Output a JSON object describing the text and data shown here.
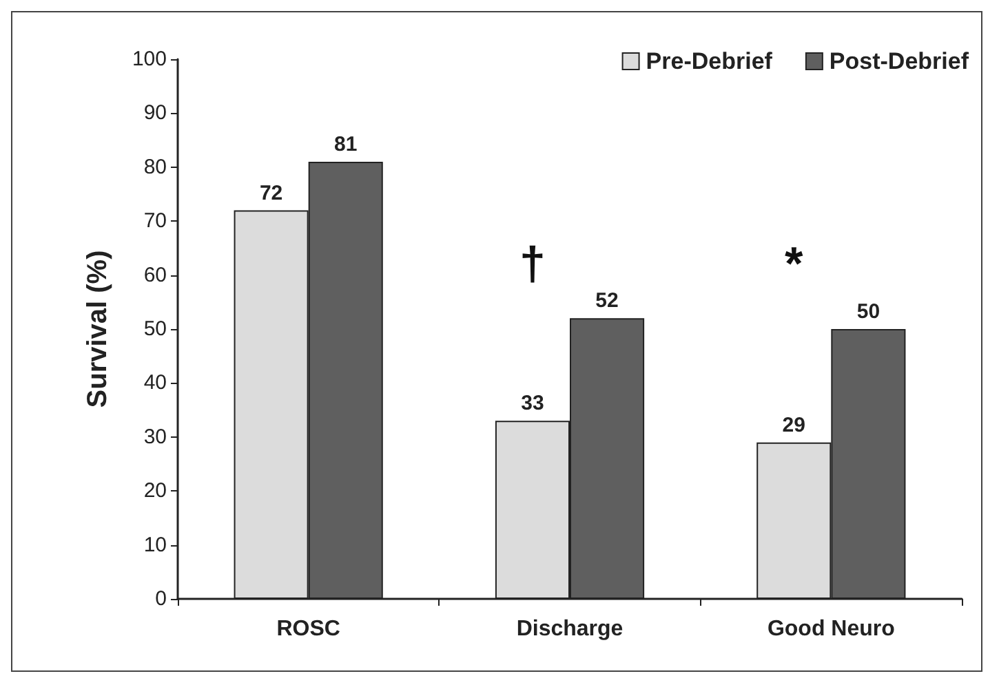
{
  "chart_data": {
    "type": "bar",
    "ylabel": "Survival (%)",
    "categories": [
      "ROSC",
      "Discharge",
      "Good Neuro"
    ],
    "series": [
      {
        "name": "Pre-Debrief",
        "color": "#dcdcdc",
        "values": [
          72,
          33,
          29
        ]
      },
      {
        "name": "Post-Debrief",
        "color": "#5f5f5f",
        "values": [
          81,
          52,
          50
        ]
      }
    ],
    "ylim": [
      0,
      100
    ],
    "yticks": [
      0,
      10,
      20,
      30,
      40,
      50,
      60,
      70,
      80,
      90,
      100
    ],
    "grid": false,
    "legend": "top right",
    "data_labels": true,
    "annotations": [
      "†",
      "*"
    ]
  }
}
